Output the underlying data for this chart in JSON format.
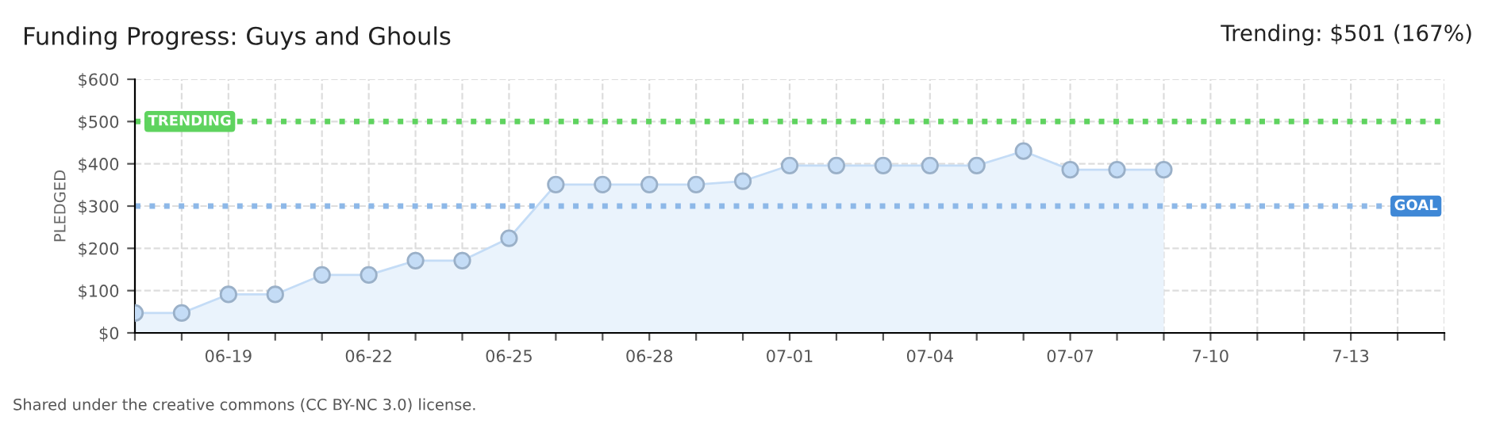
{
  "chart_data": {
    "type": "area",
    "title": "Funding Progress: Guys and Ghouls",
    "subtitle": "Trending: $501 (167%)",
    "ylabel": "PLEDGED",
    "categories": [
      null,
      null,
      "06-19",
      null,
      null,
      "06-22",
      null,
      null,
      "06-25",
      null,
      null,
      "06-28",
      null,
      null,
      "07-01",
      null,
      null,
      "07-04",
      null,
      null,
      "07-07",
      null,
      null,
      "7-10",
      null,
      null,
      "7-13",
      null,
      null
    ],
    "series": [
      {
        "color": "#c4dcf6",
        "values": [
          47,
          47,
          91,
          91,
          137,
          137,
          171,
          171,
          224,
          351,
          351,
          351,
          351,
          359,
          396,
          396,
          396,
          396,
          396,
          430,
          386,
          386,
          386,
          null,
          null,
          null,
          null,
          null,
          null
        ]
      }
    ],
    "marker": "circle",
    "grid": true,
    "ylim": [
      0,
      600
    ],
    "yticks": [
      {
        "value": 0,
        "label": "$0"
      },
      {
        "value": 100,
        "label": "$100"
      },
      {
        "value": 200,
        "label": "$200"
      },
      {
        "value": 300,
        "label": "$300"
      },
      {
        "value": 400,
        "label": "$400"
      },
      {
        "value": 500,
        "label": "$500"
      },
      {
        "value": 600,
        "label": "$600"
      }
    ],
    "ref_lines": [
      {
        "axis": "y",
        "value": 500,
        "label": "TRENDING",
        "color": "#5fd35f",
        "line_style": "dotted"
      },
      {
        "axis": "y",
        "value": 300,
        "label": "GOAL",
        "color": "#8db8e8",
        "line_style": "dotted"
      }
    ],
    "annotations": [
      "Shared under the creative commons (CC BY-NC 3.0) license."
    ]
  }
}
